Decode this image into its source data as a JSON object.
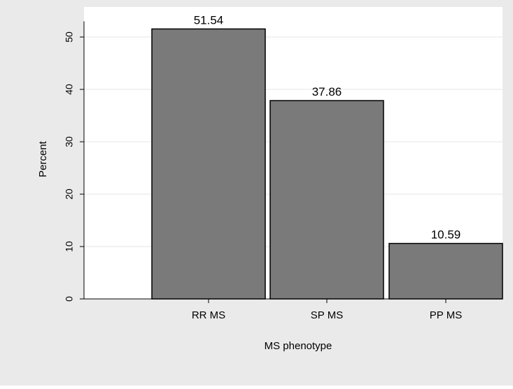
{
  "chart_data": {
    "type": "bar",
    "categories": [
      "RR MS",
      "SP MS",
      "PP MS"
    ],
    "values": [
      51.54,
      37.86,
      10.59
    ],
    "data_labels": [
      "51.54",
      "37.86",
      "10.59"
    ],
    "xlabel": "MS phenotype",
    "ylabel": "Percent",
    "ylim": [
      0,
      53
    ],
    "yticks": [
      0,
      10,
      20,
      30,
      40,
      50
    ],
    "ytick_labels": [
      "0",
      "10",
      "20",
      "30",
      "40",
      "50"
    ],
    "grid": true,
    "legend": "none",
    "colors": {
      "background": "#eaeaea",
      "plot_background": "#ffffff",
      "bar_fill": "#7a7a7a",
      "bar_stroke": "#000000",
      "grid": "#e6e6e6"
    }
  }
}
